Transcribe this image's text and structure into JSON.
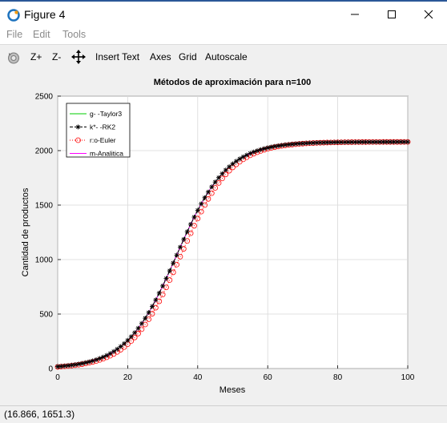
{
  "window": {
    "title": "Figure 4"
  },
  "menu": {
    "file": "File",
    "edit": "Edit",
    "tools": "Tools"
  },
  "toolbar": {
    "zoom_in": "Z+",
    "zoom_out": "Z-",
    "insert_text": "Insert Text",
    "axes": "Axes",
    "grid": "Grid",
    "autoscale": "Autoscale"
  },
  "status": {
    "coords": "(16.866, 1651.3)"
  },
  "chart_data": {
    "type": "line",
    "title": "Métodos de aproximación para n=100",
    "xlabel": "Meses",
    "ylabel": "Cantidad de productos",
    "xlim": [
      0,
      100
    ],
    "ylim": [
      0,
      2500
    ],
    "xticks": [
      "0",
      "20",
      "40",
      "60",
      "80",
      "100"
    ],
    "yticks": [
      "0",
      "500",
      "1000",
      "1500",
      "2000",
      "2500"
    ],
    "grid": true,
    "legend_position": "top-left",
    "model_note_hidden": true,
    "series": [
      {
        "name": "g- -Taylor3",
        "color": "#00cc00",
        "marker": "none",
        "dash": "",
        "shift": 0
      },
      {
        "name": "k*- -RK2",
        "color": "#000000",
        "marker": "asterisk",
        "dash": "4,2",
        "shift": 0
      },
      {
        "name": "r:o-Euler",
        "color": "#ff0000",
        "marker": "circle",
        "dash": "1,2",
        "shift": 1.2
      },
      {
        "name": "m-Analitica",
        "color": "#ff00ff",
        "marker": "none",
        "dash": "",
        "shift": 0
      }
    ],
    "curve": {
      "K": 2080,
      "P0": 18,
      "r": 0.1395
    }
  }
}
